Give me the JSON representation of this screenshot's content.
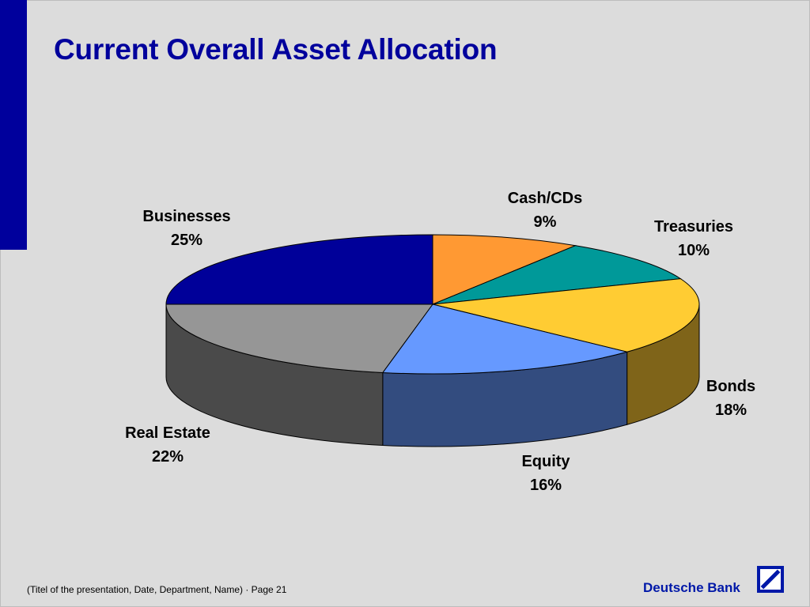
{
  "slide": {
    "title": "Current Overall Asset Allocation",
    "footer": "(Titel of the presentation, Date, Department, Name) · Page 21",
    "brand": "Deutsche Bank",
    "accent_color": "#00009c",
    "logo_icon": "deutsche-bank-slash-logo"
  },
  "chart_data": {
    "type": "pie",
    "title": "",
    "style": "3d",
    "categories": [
      "Cash/CDs",
      "Treasuries",
      "Bonds",
      "Equity",
      "Real Estate",
      "Businesses"
    ],
    "values": [
      9,
      10,
      18,
      16,
      22,
      25
    ],
    "value_labels": [
      "9%",
      "10%",
      "18%",
      "16%",
      "22%",
      "25%"
    ],
    "colors": [
      "#ff9933",
      "#009999",
      "#ffcc33",
      "#6699ff",
      "#969696",
      "#000099"
    ],
    "side_colors": [
      "#7f4c19",
      "#004c4c",
      "#7f6419",
      "#334c7f",
      "#4a4a4a",
      "#00004c"
    ],
    "legend": "none"
  }
}
